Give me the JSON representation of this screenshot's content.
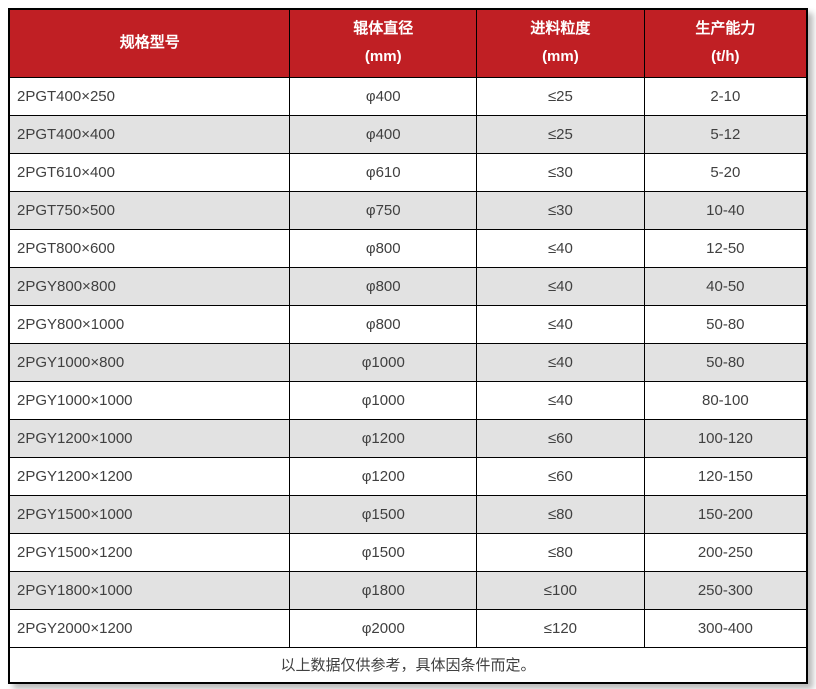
{
  "table": {
    "headers": [
      {
        "line1": "规格型号",
        "line2": ""
      },
      {
        "line1": "辊体直径",
        "line2": "(mm)"
      },
      {
        "line1": "进料粒度",
        "line2": "(mm)"
      },
      {
        "line1": "生产能力",
        "line2": "(t/h)"
      }
    ],
    "header_names": [
      "model",
      "roller-diameter",
      "feed-size",
      "capacity"
    ],
    "rows": [
      [
        "2PGT400×250",
        "φ400",
        "≤25",
        "2-10"
      ],
      [
        "2PGT400×400",
        "φ400",
        "≤25",
        "5-12"
      ],
      [
        "2PGT610×400",
        "φ610",
        "≤30",
        "5-20"
      ],
      [
        "2PGT750×500",
        "φ750",
        "≤30",
        "10-40"
      ],
      [
        "2PGT800×600",
        "φ800",
        "≤40",
        "12-50"
      ],
      [
        "2PGY800×800",
        "φ800",
        "≤40",
        "40-50"
      ],
      [
        "2PGY800×1000",
        "φ800",
        "≤40",
        "50-80"
      ],
      [
        "2PGY1000×800",
        "φ1000",
        "≤40",
        "50-80"
      ],
      [
        "2PGY1000×1000",
        "φ1000",
        "≤40",
        "80-100"
      ],
      [
        "2PGY1200×1000",
        "φ1200",
        "≤60",
        "100-120"
      ],
      [
        "2PGY1200×1200",
        "φ1200",
        "≤60",
        "120-150"
      ],
      [
        "2PGY1500×1000",
        "φ1500",
        "≤80",
        "150-200"
      ],
      [
        "2PGY1500×1200",
        "φ1500",
        "≤80",
        "200-250"
      ],
      [
        "2PGY1800×1000",
        "φ1800",
        "≤100",
        "250-300"
      ],
      [
        "2PGY2000×1200",
        "φ2000",
        "≤120",
        "300-400"
      ]
    ],
    "footer_note": "以上数据仅供参考，具体因条件而定。"
  },
  "colors": {
    "header_bg": "#c01f24",
    "header_text": "#ffffff",
    "row_bg": "#ffffff",
    "row_alt_bg": "#e2e2e2",
    "border": "#000000",
    "cell_text": "#404040"
  }
}
